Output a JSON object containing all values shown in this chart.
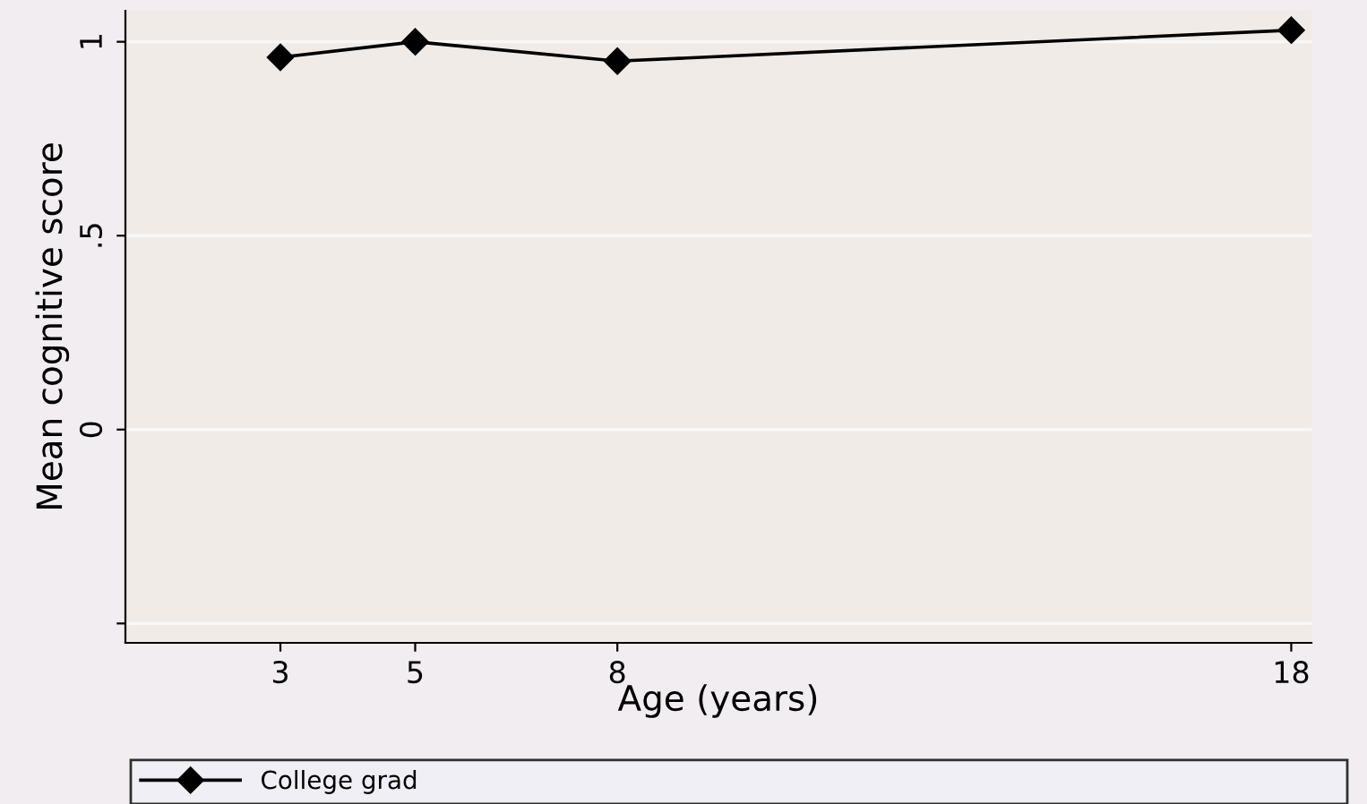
{
  "chart_data": {
    "type": "line",
    "xlabel": "Age (years)",
    "ylabel": "Mean cognitive score",
    "x": [
      3,
      5,
      8,
      18
    ],
    "series": [
      {
        "name": "College grad",
        "color": "#000000",
        "values": [
          0.96,
          1.0,
          0.95,
          1.03
        ]
      }
    ],
    "marker": "diamond",
    "line_style": "solid",
    "xlim": [
      0.7,
      18.3
    ],
    "xticks": [
      3,
      5,
      8,
      18
    ],
    "ylim": [
      -0.55,
      1.08
    ],
    "yticks": [
      {
        "value": -0.5,
        "label": null
      },
      0,
      {
        "value": 0.5,
        "label": ".5"
      },
      1
    ],
    "grid": "y",
    "legend": "bottom"
  }
}
